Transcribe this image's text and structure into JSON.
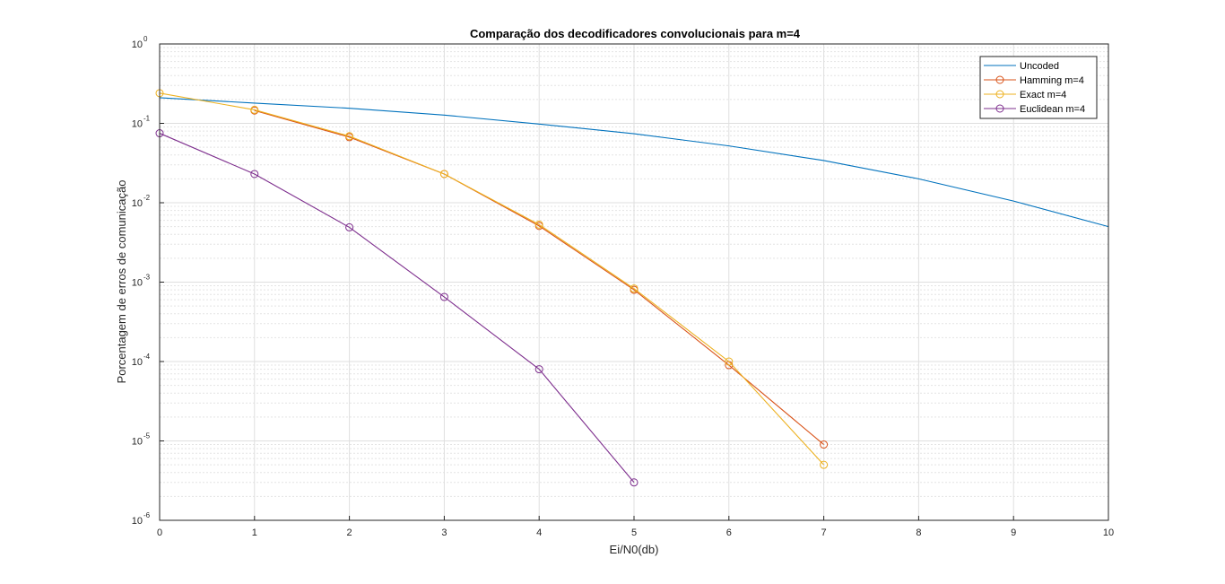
{
  "chart_data": {
    "type": "line",
    "title": "Comparação dos decodificadores convolucionais para m=4",
    "xlabel": "Ei/N0(db)",
    "ylabel": "Porcentagem de erros de comunicação",
    "xlim": [
      0,
      10
    ],
    "ylim": [
      1e-06,
      1
    ],
    "yscale": "log",
    "grid": true,
    "minor_grid": true,
    "legend_location": "top-right",
    "x_ticks": [
      0,
      1,
      2,
      3,
      4,
      5,
      6,
      7,
      8,
      9,
      10
    ],
    "y_tick_bases": [
      "10",
      "10",
      "10",
      "10",
      "10",
      "10",
      "10"
    ],
    "y_tick_exponents": [
      "-6",
      "-5",
      "-4",
      "-3",
      "-2",
      "-1",
      "0"
    ],
    "series": [
      {
        "name": "Uncoded",
        "color": "#0072BD",
        "marker": "none",
        "x": [
          0,
          1,
          2,
          3,
          4,
          5,
          6,
          7,
          8,
          9,
          10
        ],
        "y": [
          0.21,
          0.18,
          0.155,
          0.127,
          0.098,
          0.074,
          0.052,
          0.034,
          0.02,
          0.0105,
          0.005
        ]
      },
      {
        "name": "Hamming m=4",
        "color": "#D95319",
        "marker": "circle",
        "x": [
          1,
          2,
          3,
          4,
          5,
          6,
          7
        ],
        "y": [
          0.145,
          0.067,
          0.023,
          0.0051,
          0.0008,
          9e-05,
          9e-06
        ]
      },
      {
        "name": "Exact m=4",
        "color": "#EDB120",
        "marker": "circle",
        "x": [
          0,
          1,
          2,
          3,
          4,
          5,
          6,
          7
        ],
        "y": [
          0.24,
          0.148,
          0.069,
          0.023,
          0.0053,
          0.00083,
          0.0001,
          5e-06
        ]
      },
      {
        "name": "Euclidean m=4",
        "color": "#7E2F8E",
        "marker": "circle",
        "x": [
          0,
          1,
          2,
          3,
          4,
          5
        ],
        "y": [
          0.075,
          0.023,
          0.0049,
          0.00065,
          8e-05,
          3e-06
        ]
      }
    ]
  }
}
